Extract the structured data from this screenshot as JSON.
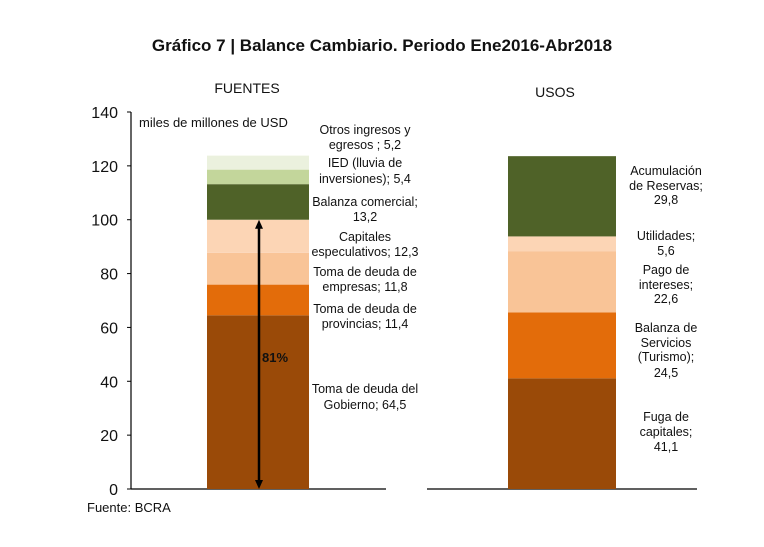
{
  "chart_data": {
    "type": "bar",
    "stacked": true,
    "title": "Gráfico 7 | Balance Cambiario. Periodo Ene2016-Abr2018",
    "ylabel": "miles de millones de USD",
    "ylim": [
      0,
      140
    ],
    "yticks": [
      0,
      20,
      40,
      60,
      80,
      100,
      120,
      140
    ],
    "grid": false,
    "source": "Fuente: BCRA",
    "annotation": {
      "text": "81%",
      "from": 0,
      "to": 100
    },
    "categories": [
      "FUENTES",
      "USOS"
    ],
    "stacks": [
      {
        "category": "FUENTES",
        "segments": [
          {
            "name": "Toma de deuda del Gobierno",
            "value": 64.5,
            "color": "#9A4A08",
            "label": [
              "Toma de deuda del",
              "Gobierno; 64,5"
            ]
          },
          {
            "name": "Toma de deuda de provincias",
            "value": 11.4,
            "color": "#E36C0A",
            "label": [
              "Toma de deuda de",
              "provincias; 11,4"
            ]
          },
          {
            "name": "Toma de deuda de empresas",
            "value": 11.8,
            "color": "#F9C497",
            "label": [
              "Toma de deuda de",
              "empresas; 11,8"
            ]
          },
          {
            "name": "Capitales especulativos",
            "value": 12.3,
            "color": "#FCD5B5",
            "label": [
              "Capitales",
              "especulativos; 12,3"
            ]
          },
          {
            "name": "Balanza comercial",
            "value": 13.2,
            "color": "#4F6228",
            "label": [
              "Balanza comercial;",
              "13,2"
            ]
          },
          {
            "name": "IED (lluvia de inversiones)",
            "value": 5.4,
            "color": "#C3D69B",
            "label": [
              "IED (lluvia de",
              "inversiones); 5,4"
            ]
          },
          {
            "name": "Otros ingresos y egresos",
            "value": 5.2,
            "color": "#EBF1DE",
            "label": [
              "Otros ingresos y",
              "egresos ; 5,2"
            ]
          }
        ]
      },
      {
        "category": "USOS",
        "segments": [
          {
            "name": "Fuga de capitales",
            "value": 41.1,
            "color": "#9A4A08",
            "label": [
              "Fuga de",
              "capitales;",
              "41,1"
            ]
          },
          {
            "name": "Balanza de Servicios (Turismo)",
            "value": 24.5,
            "color": "#E36C0A",
            "label": [
              "Balanza de",
              "Servicios",
              "(Turismo);",
              "24,5"
            ]
          },
          {
            "name": "Pago de intereses",
            "value": 22.6,
            "color": "#F9C497",
            "label": [
              "Pago de",
              "intereses;",
              "22,6"
            ]
          },
          {
            "name": "Utilidades",
            "value": 5.6,
            "color": "#FCD5B5",
            "label": [
              "Utilidades;",
              "5,6"
            ]
          },
          {
            "name": "Acumulación de Reservas",
            "value": 29.8,
            "color": "#4F6228",
            "label": [
              "Acumulación",
              "de Reservas;",
              "29,8"
            ]
          }
        ]
      }
    ]
  }
}
